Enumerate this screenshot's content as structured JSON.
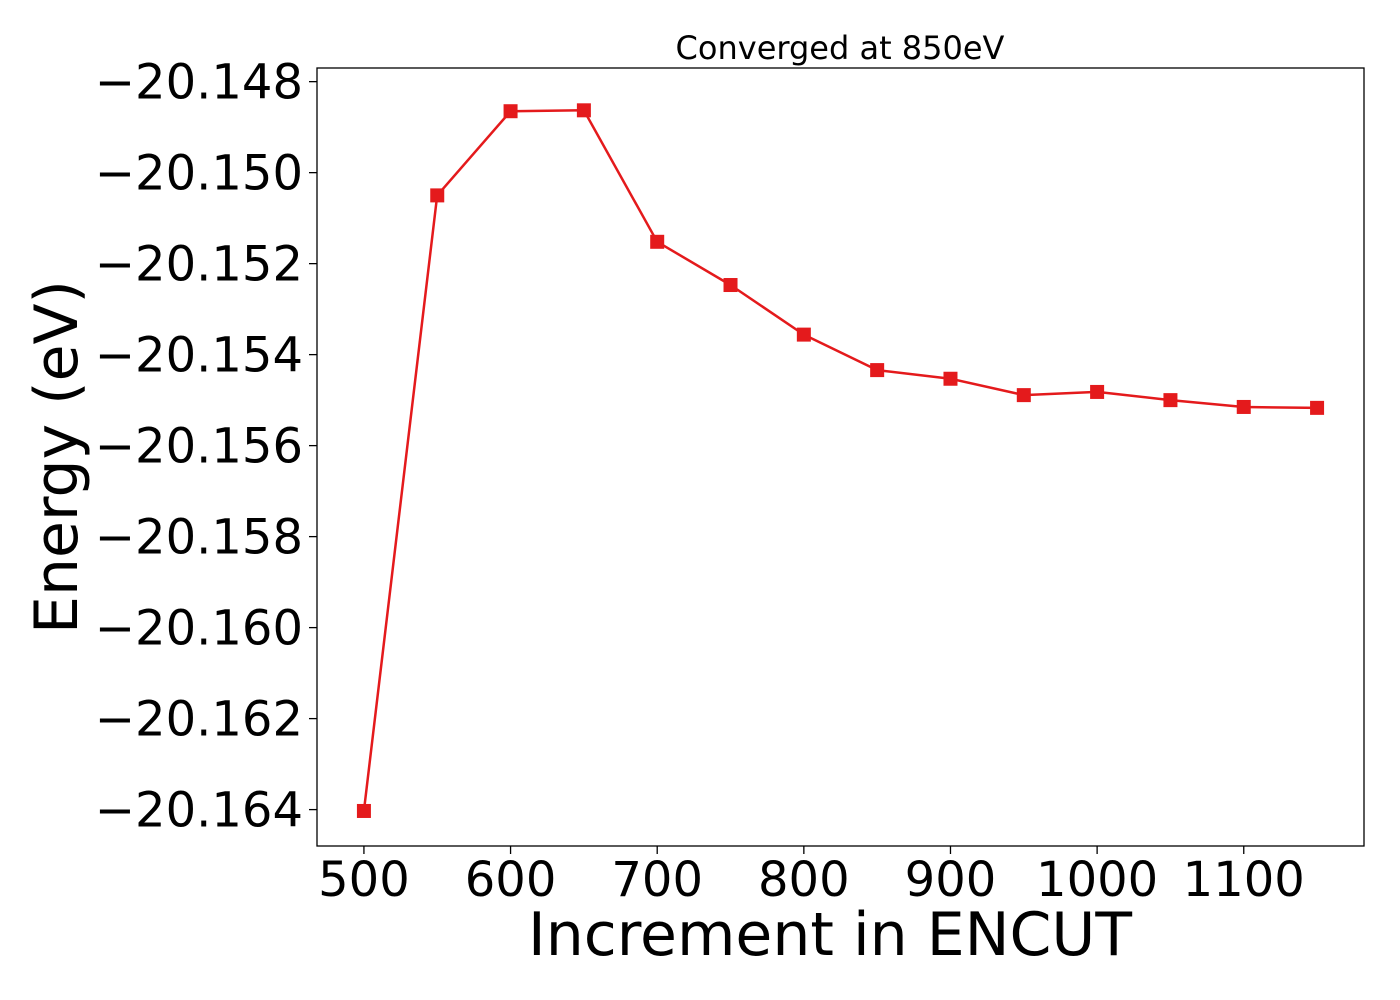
{
  "chart_data": {
    "type": "line",
    "title": "Converged at 850eV",
    "xlabel": "Increment in ENCUT",
    "ylabel": "Energy (eV)",
    "x": [
      500,
      550,
      600,
      650,
      700,
      750,
      800,
      850,
      900,
      950,
      1000,
      1050,
      1100,
      1150
    ],
    "series": [
      {
        "values": [
          -20.16403,
          -20.1505,
          -20.14865,
          -20.14863,
          -20.15152,
          -20.15247,
          -20.15356,
          -20.15434,
          -20.15453,
          -20.15489,
          -20.15482,
          -20.155,
          -20.15515,
          -20.15517
        ],
        "color": "#e41a1c",
        "marker": "square"
      }
    ],
    "xticks": [
      500,
      600,
      700,
      800,
      900,
      1000,
      1100
    ],
    "xtick_labels": [
      "500",
      "600",
      "700",
      "800",
      "900",
      "1000",
      "1100"
    ],
    "yticks": [
      -20.148,
      -20.15,
      -20.152,
      -20.154,
      -20.156,
      -20.158,
      -20.16,
      -20.162,
      -20.164
    ],
    "ytick_labels": [
      "−20.148",
      "−20.150",
      "−20.152",
      "−20.154",
      "−20.156",
      "−20.158",
      "−20.160",
      "−20.162",
      "−20.164"
    ],
    "xlim": [
      468,
      1182
    ],
    "ylim": [
      -20.1648,
      -20.1477
    ],
    "grid": false,
    "legend": false
  }
}
